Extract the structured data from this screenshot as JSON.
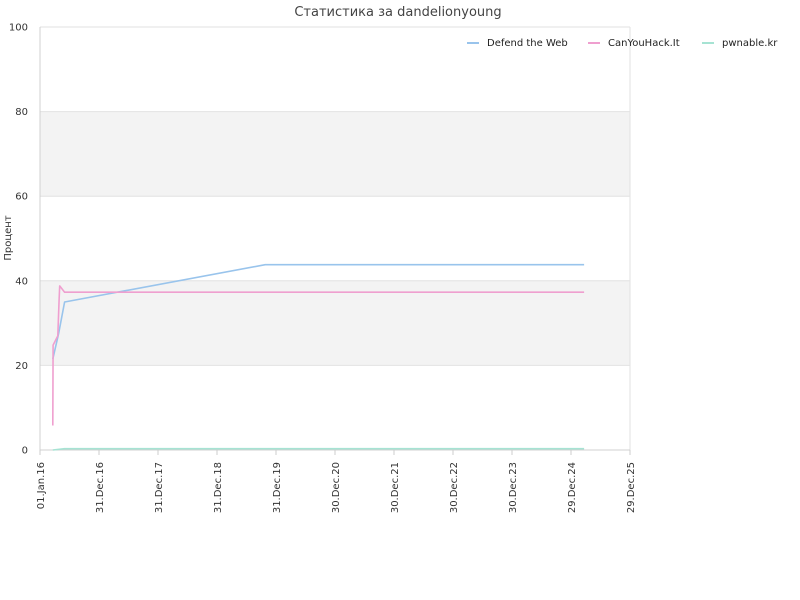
{
  "chart_data": {
    "type": "line",
    "title": "Статистика за dandelionyoung",
    "xlabel": "",
    "ylabel": "Процент",
    "ylim": [
      0,
      100
    ],
    "yticks": [
      0,
      20,
      40,
      60,
      80,
      100
    ],
    "xlim": [
      "2016-01-01",
      "2025-12-29"
    ],
    "xticks": [
      {
        "date": "2016-01-01",
        "label": "01.Jan.16"
      },
      {
        "date": "2016-12-31",
        "label": "31.Dec.16"
      },
      {
        "date": "2017-12-31",
        "label": "31.Dec.17"
      },
      {
        "date": "2018-12-31",
        "label": "31.Dec.18"
      },
      {
        "date": "2019-12-31",
        "label": "31.Dec.19"
      },
      {
        "date": "2020-12-30",
        "label": "30.Dec.20"
      },
      {
        "date": "2021-12-30",
        "label": "30.Dec.21"
      },
      {
        "date": "2022-12-30",
        "label": "30.Dec.22"
      },
      {
        "date": "2023-12-30",
        "label": "30.Dec.23"
      },
      {
        "date": "2024-12-29",
        "label": "29.Dec.24"
      },
      {
        "date": "2025-12-29",
        "label": "29.Dec.25"
      }
    ],
    "grid": true,
    "banded_background": true,
    "legend_position": "top-right",
    "series": [
      {
        "name": "Defend the Web",
        "color": "#99c4ec",
        "points": [
          {
            "x": "2016-03-20",
            "y": 21.5
          },
          {
            "x": "2016-04-25",
            "y": 27.5
          },
          {
            "x": "2016-06-01",
            "y": 35.0
          },
          {
            "x": "2019-10-25",
            "y": 43.8
          },
          {
            "x": "2025-03-20",
            "y": 43.8
          }
        ]
      },
      {
        "name": "CanYouHack.It",
        "color": "#ef9fcf",
        "points": [
          {
            "x": "2016-03-20",
            "y": 5.8
          },
          {
            "x": "2016-03-22",
            "y": 24.8
          },
          {
            "x": "2016-04-20",
            "y": 27.0
          },
          {
            "x": "2016-04-28",
            "y": 35.5
          },
          {
            "x": "2016-05-02",
            "y": 38.8
          },
          {
            "x": "2016-06-01",
            "y": 37.3
          },
          {
            "x": "2025-03-20",
            "y": 37.3
          }
        ]
      },
      {
        "name": "pwnable.kr",
        "color": "#a6e3d3",
        "points": [
          {
            "x": "2016-03-20",
            "y": 0.0
          },
          {
            "x": "2016-06-01",
            "y": 0.3
          },
          {
            "x": "2025-03-20",
            "y": 0.3
          }
        ]
      }
    ]
  }
}
